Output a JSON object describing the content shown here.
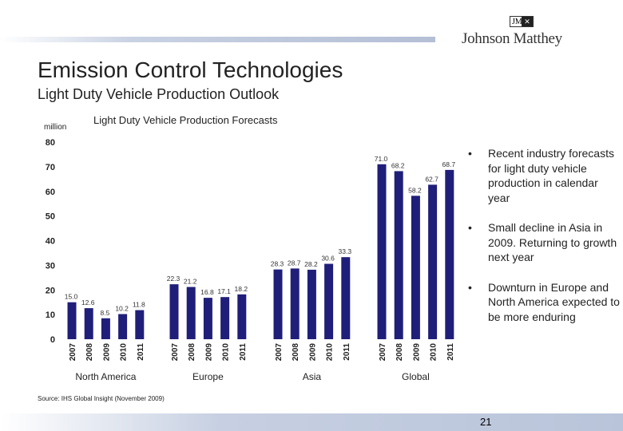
{
  "header": {
    "title": "Emission Control Technologies",
    "subtitle": "Light Duty Vehicle Production Outlook",
    "logo_text": "Johnson Matthey",
    "logo_mark": "JM"
  },
  "chart_data": {
    "type": "bar",
    "title": "Light Duty Vehicle Production Forecasts",
    "ylabel": "million",
    "ylim": [
      0,
      80
    ],
    "yticks": [
      0,
      10,
      20,
      30,
      40,
      50,
      60,
      70,
      80
    ],
    "bar_color": "#1f1f7a",
    "grid": false,
    "groups": [
      {
        "name": "North America",
        "categories": [
          "2007",
          "2008",
          "2009",
          "2010",
          "2011"
        ],
        "values": [
          15.0,
          12.6,
          8.5,
          10.2,
          11.8
        ],
        "labels": [
          "15.0",
          "12.6",
          "8.5",
          "10.2",
          "11.8"
        ]
      },
      {
        "name": "Europe",
        "categories": [
          "2007",
          "2008",
          "2009",
          "2010",
          "2011"
        ],
        "values": [
          22.3,
          21.2,
          16.8,
          17.1,
          18.2
        ],
        "labels": [
          "22.3",
          "21.2",
          "16.8",
          "17.1",
          "18.2"
        ]
      },
      {
        "name": "Asia",
        "categories": [
          "2007",
          "2008",
          "2009",
          "2010",
          "2011"
        ],
        "values": [
          28.3,
          28.7,
          28.2,
          30.6,
          33.3
        ],
        "labels": [
          "28.3",
          "28.7",
          "28.2",
          "30.6",
          "33.3"
        ]
      },
      {
        "name": "Global",
        "categories": [
          "2007",
          "2008",
          "2009",
          "2010",
          "2011"
        ],
        "values": [
          71.0,
          68.2,
          58.2,
          62.7,
          68.7
        ],
        "labels": [
          "71.0",
          "68.2",
          "58.2",
          "62.7",
          "68.7"
        ]
      }
    ]
  },
  "bullets": [
    "Recent industry forecasts for light duty vehicle production in calendar year",
    "Small decline in Asia in 2009. Returning to growth next year",
    "Downturn in Europe and North America expected to be more enduring"
  ],
  "source": "Source: IHS Global Insight (November 2009)",
  "page_number": "21"
}
